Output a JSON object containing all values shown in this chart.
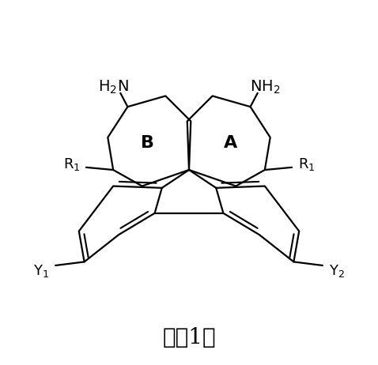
{
  "title": "式（1）",
  "background": "#ffffff",
  "line_color": "#000000",
  "line_width": 1.6,
  "font_size_label": 13,
  "font_size_title": 20
}
